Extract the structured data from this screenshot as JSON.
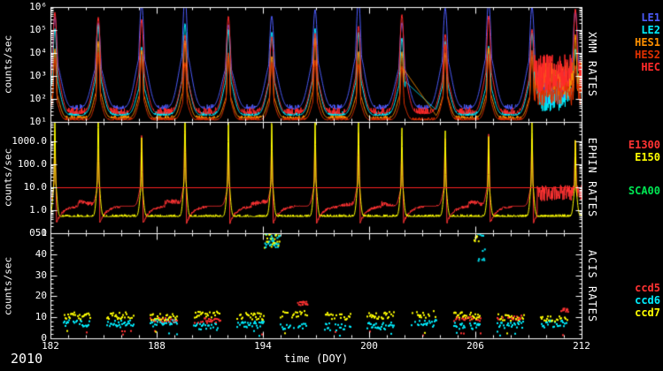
{
  "figure": {
    "year_label": "2010",
    "xlabel": "time (DOY)",
    "x_range": [
      182,
      212
    ],
    "xticks": [
      182,
      188,
      194,
      200,
      206,
      212
    ],
    "background": "#000000",
    "text_color": "#ffffff"
  },
  "chart_data": [
    {
      "type": "line",
      "title": "XMM RATES",
      "ylabel": "counts/sec",
      "yscale": "log",
      "xlim": [
        182,
        212
      ],
      "ylim_exp": [
        1,
        6
      ],
      "ytick_exps": [
        6,
        5,
        4,
        3,
        2,
        1
      ],
      "ytick_labels": [
        "10⁶",
        "10⁵",
        "10⁴",
        "10³",
        "10²",
        "10¹"
      ],
      "peak_doys": [
        182.25,
        184.7,
        187.15,
        189.6,
        192.05,
        194.5,
        196.95,
        199.4,
        201.85,
        204.3,
        206.75,
        209.2,
        211.65
      ],
      "series": [
        {
          "name": "LE1",
          "color": "#4d5cff",
          "base": 1.55,
          "noise": 0.22,
          "peak_h": 4.35,
          "peak_w": 0.2,
          "shoulder_h": 2.3,
          "shoulder_w": 0.5,
          "storm": {
            "x0": 209.35,
            "base": 2.5,
            "noise": 0.8
          }
        },
        {
          "name": "LE2",
          "color": "#00eeff",
          "base": 1.28,
          "noise": 0.18,
          "peak_h": 3.5,
          "peak_w": 0.16,
          "shoulder_h": 1.6,
          "shoulder_w": 0.4,
          "event": {
            "x0": 202.05,
            "x1": 204.1,
            "e0": 2.75,
            "e1": 1.3
          },
          "storm": {
            "x0": 209.35,
            "base": 2.0,
            "noise": 0.55
          }
        },
        {
          "name": "HES1",
          "color": "#ff9100",
          "base": 1.15,
          "noise": 0.13,
          "peak_h": 3.1,
          "peak_w": 0.12,
          "shoulder_h": 1.2,
          "shoulder_w": 0.35,
          "event": {
            "x0": 201.95,
            "x1": 203.9,
            "e0": 3.3,
            "e1": 1.15
          },
          "storm": {
            "x0": 209.35,
            "base": 2.85,
            "noise": 0.75
          }
        },
        {
          "name": "HES2",
          "color": "#e03000",
          "base": 1.08,
          "noise": 0.12,
          "peak_h": 2.8,
          "peak_w": 0.12,
          "shoulder_h": 1.0,
          "shoulder_w": 0.3,
          "storm": {
            "x0": 209.35,
            "base": 2.3,
            "noise": 0.6
          }
        },
        {
          "name": "HEC",
          "color": "#ff2a2a",
          "base": 1.35,
          "noise": 0.28,
          "peak_h": 3.9,
          "peak_w": 0.17,
          "shoulder_h": 1.9,
          "shoulder_w": 0.42,
          "storm": {
            "x0": 209.35,
            "base": 3.1,
            "noise": 0.85
          }
        }
      ]
    },
    {
      "type": "line",
      "title": "EPHIN RATES",
      "ylabel": "counts/sec",
      "yscale": "log",
      "xlim": [
        182,
        212
      ],
      "ylim_exp": [
        -1,
        3.85
      ],
      "ytick_exps": [
        3,
        2,
        1,
        0,
        -1
      ],
      "ytick_labels": [
        "1000.0",
        "100.0",
        "10.0",
        "1.0",
        "0.1"
      ],
      "threshold": {
        "value": 10.0,
        "color": "#ff2222"
      },
      "peak_doys": [
        182.25,
        184.7,
        187.15,
        189.6,
        192.05,
        194.5,
        196.95,
        199.4,
        201.85,
        204.3,
        206.75,
        209.2,
        211.65
      ],
      "series": [
        {
          "name": "E1300",
          "color": "#ff3333",
          "base": 0.18,
          "noise": 0.1,
          "wave": {
            "amp": 0.2,
            "period": 5.5
          },
          "dip": 0.75,
          "peak_h": 2.9,
          "peak_w": 0.06,
          "shoulder_h": 0.9,
          "shoulder_w": 0.2,
          "storm": {
            "x0": 209.5,
            "base": 0.75,
            "noise": 0.35
          }
        },
        {
          "name": "E150",
          "color": "#ffff00",
          "base": -0.28,
          "noise": 0.1,
          "peak_h": 4.05,
          "peak_w": 0.045,
          "shoulder_h": 1.6,
          "shoulder_w": 0.14
        },
        {
          "name": "SCA00",
          "color": "#00e653",
          "draw": false
        }
      ]
    },
    {
      "type": "scatter",
      "title": "ACIS RATES",
      "ylabel": "counts/sec",
      "yscale": "linear",
      "xlim": [
        182,
        212
      ],
      "ylim": [
        0,
        50
      ],
      "yticks": [
        50,
        40,
        30,
        20,
        10,
        0
      ],
      "peak_doys": [
        182.25,
        184.7,
        187.15,
        189.6,
        192.05,
        194.5,
        196.95,
        199.4,
        201.85,
        204.3,
        206.75,
        209.2,
        211.65
      ],
      "series": [
        {
          "name": "ccd5",
          "color": "#ff3333",
          "level": 9.0,
          "spread": 1.2,
          "presence": 0.5
        },
        {
          "name": "ccd6",
          "color": "#00eeff",
          "level": 6.3,
          "spread": 1.7,
          "presence": 0.85
        },
        {
          "name": "ccd7",
          "color": "#ffff00",
          "level": 10.6,
          "spread": 1.7,
          "presence": 0.9
        }
      ],
      "anomalies": [
        {
          "x": [
            194.1,
            194.95
          ],
          "y": [
            43,
            50
          ],
          "colors": [
            "#00eeff",
            "#ffff00"
          ]
        },
        {
          "x": [
            195.95,
            196.55
          ],
          "y": [
            15.5,
            17.5
          ],
          "colors": [
            "#ff3333"
          ]
        },
        {
          "x": [
            205.95,
            206.2
          ],
          "y": [
            46,
            50
          ],
          "colors": [
            "#ffff00"
          ]
        },
        {
          "x": [
            206.15,
            206.6
          ],
          "y": [
            36,
            50
          ],
          "colors": [
            "#00eeff"
          ]
        },
        {
          "x": [
            210.85,
            211.25
          ],
          "y": [
            12.5,
            14.5
          ],
          "colors": [
            "#ff3333"
          ]
        }
      ]
    }
  ]
}
